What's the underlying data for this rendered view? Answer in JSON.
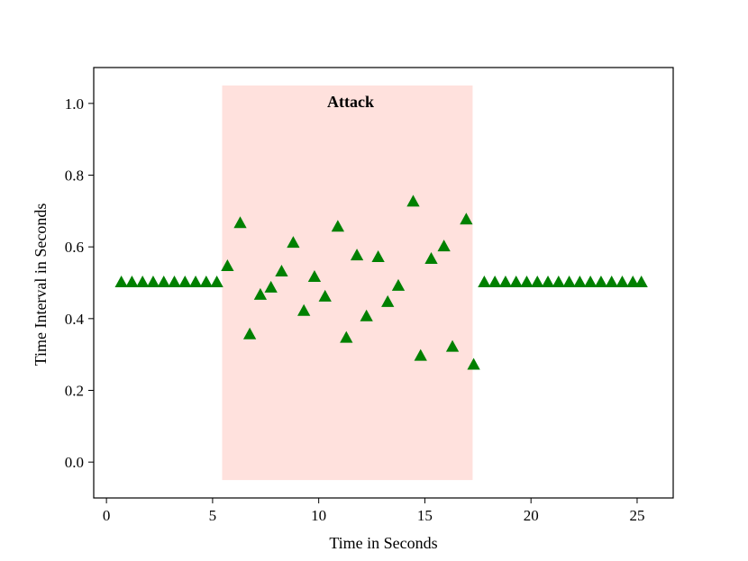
{
  "chart_data": {
    "type": "scatter",
    "title": "",
    "xlabel": "Time in Seconds",
    "ylabel": "Time Interval in Seconds",
    "xlim": [
      -0.6,
      26.7
    ],
    "ylim": [
      -0.1,
      1.1
    ],
    "xticks": [
      0,
      5,
      10,
      15,
      20,
      25
    ],
    "yticks": [
      0.0,
      0.2,
      0.4,
      0.6,
      0.8,
      1.0
    ],
    "xtick_labels": [
      "0",
      "5",
      "10",
      "15",
      "20",
      "25"
    ],
    "ytick_labels": [
      "0.0",
      "0.2",
      "0.4",
      "0.6",
      "0.8",
      "1.0"
    ],
    "grid": false,
    "marker": "triangle",
    "marker_color": "#008000",
    "highlight": {
      "label": "Attack",
      "x_range": [
        5.45,
        17.25
      ],
      "y_range": [
        -0.05,
        1.05
      ],
      "color": "#ffe1dd"
    },
    "series": [
      {
        "x": [
          0.7,
          1.2,
          1.7,
          2.2,
          2.7,
          3.2,
          3.7,
          4.2,
          4.7,
          5.2,
          5.7,
          6.3,
          6.75,
          7.25,
          7.75,
          8.25,
          8.8,
          9.3,
          9.8,
          10.3,
          10.9,
          11.3,
          11.8,
          12.25,
          12.8,
          13.25,
          13.75,
          14.45,
          14.8,
          15.3,
          15.9,
          16.3,
          16.95,
          17.3,
          17.8,
          18.3,
          18.8,
          19.3,
          19.8,
          20.3,
          20.8,
          21.3,
          21.8,
          22.3,
          22.8,
          23.3,
          23.8,
          24.3,
          24.8,
          25.2
        ],
        "y": [
          0.5,
          0.5,
          0.5,
          0.5,
          0.5,
          0.5,
          0.5,
          0.5,
          0.5,
          0.5,
          0.545,
          0.665,
          0.355,
          0.465,
          0.485,
          0.53,
          0.61,
          0.42,
          0.515,
          0.46,
          0.655,
          0.345,
          0.575,
          0.405,
          0.57,
          0.445,
          0.49,
          0.725,
          0.295,
          0.565,
          0.6,
          0.32,
          0.675,
          0.27,
          0.5,
          0.5,
          0.5,
          0.5,
          0.5,
          0.5,
          0.5,
          0.5,
          0.5,
          0.5,
          0.5,
          0.5,
          0.5,
          0.5,
          0.5,
          0.5
        ]
      }
    ]
  }
}
